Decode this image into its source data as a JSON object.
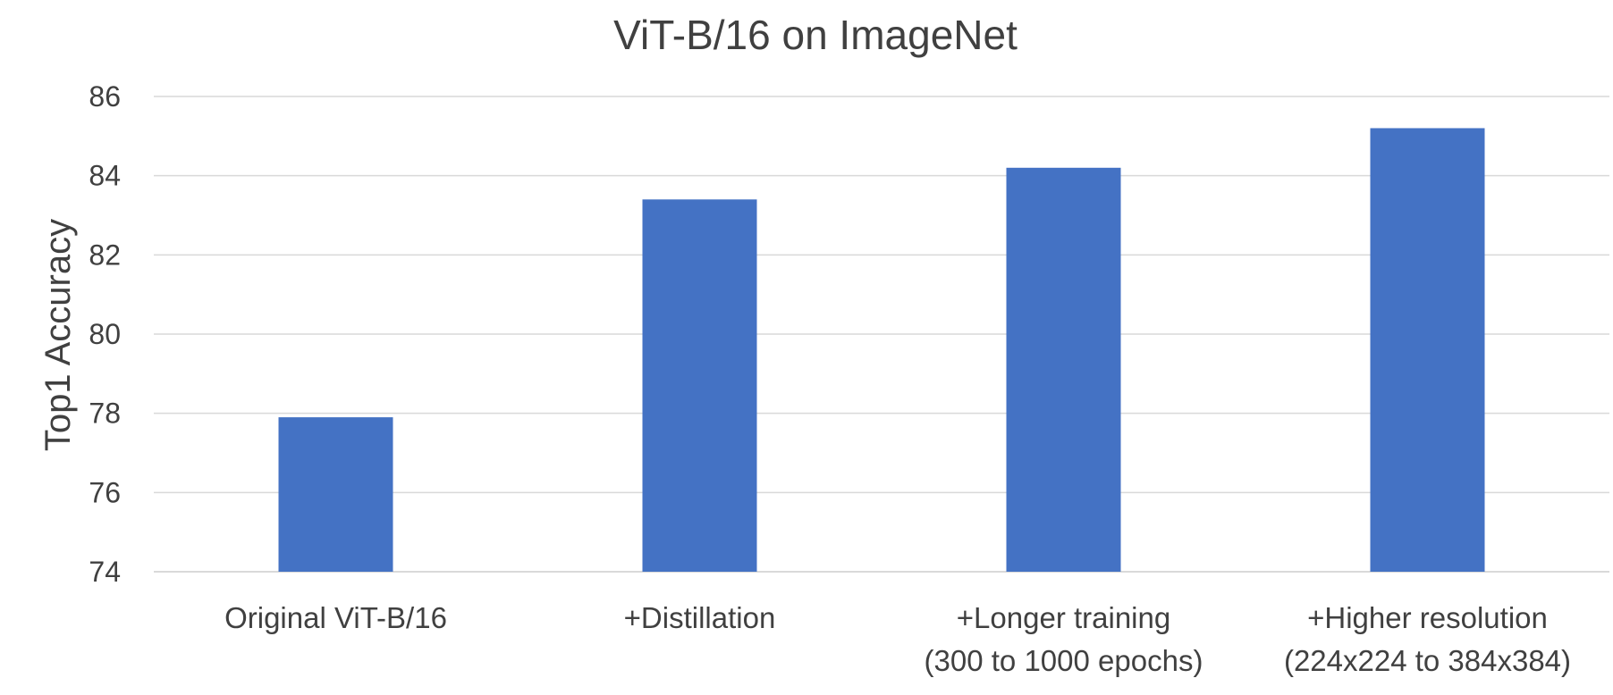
{
  "chart_data": {
    "type": "bar",
    "title": "ViT-B/16 on ImageNet",
    "xlabel": "",
    "ylabel": "Top1 Accuracy",
    "ylim": [
      74,
      86
    ],
    "yticks": [
      "74",
      "76",
      "78",
      "80",
      "82",
      "84",
      "86"
    ],
    "grid": true,
    "categories": [
      [
        "Original ViT-B/16"
      ],
      [
        "+Distillation"
      ],
      [
        "+Longer training",
        "(300 to 1000 epochs)"
      ],
      [
        "+Higher resolution",
        "(224x224 to 384x384)"
      ]
    ],
    "values": [
      77.9,
      83.4,
      84.2,
      85.2
    ],
    "bar_color": "#4472C4"
  }
}
